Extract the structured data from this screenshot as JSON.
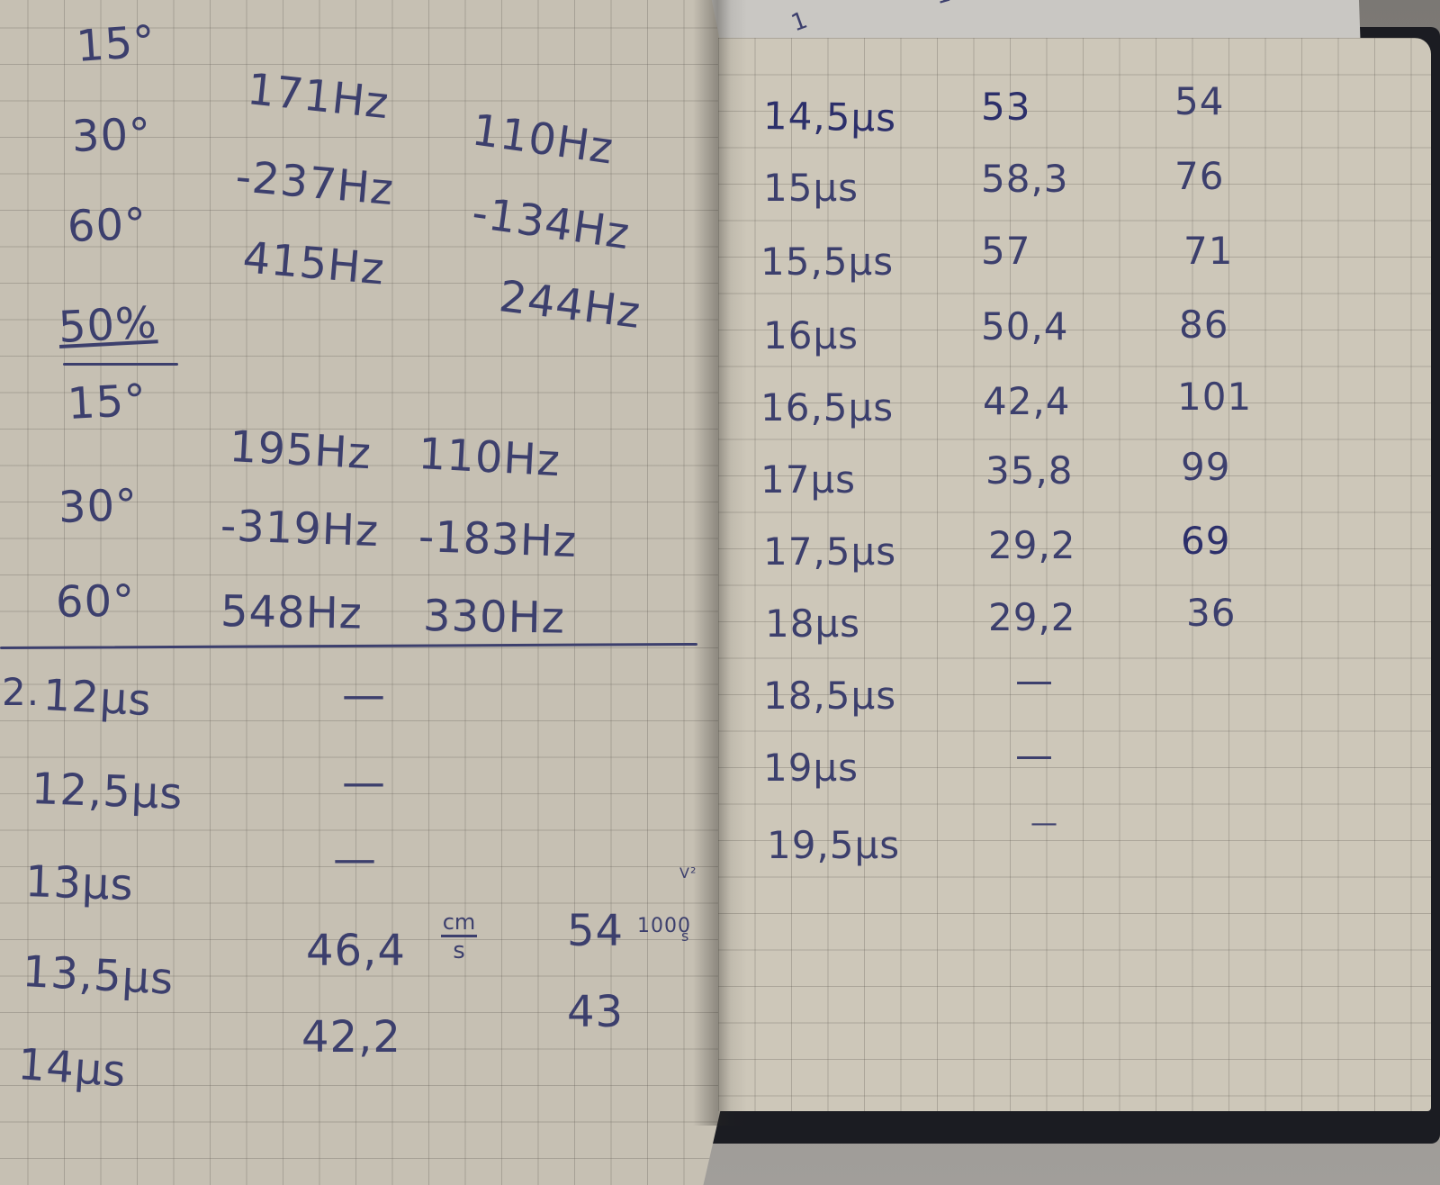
{
  "header_fragments": [
    "1 ",
    "1 "
  ],
  "left_page": {
    "section_a": [
      {
        "angle": "15°",
        "f1": "171Hz",
        "f2": "110Hz"
      },
      {
        "angle": "30°",
        "f1": "-237Hz",
        "f2": "-134Hz"
      },
      {
        "angle": "60°",
        "f1": "415Hz",
        "f2": "244Hz"
      }
    ],
    "heading": "50%",
    "section_b": [
      {
        "angle": "15°",
        "f1": "195Hz",
        "f2": "110Hz"
      },
      {
        "angle": "30°",
        "f1": "-319Hz",
        "f2": "-183Hz"
      },
      {
        "angle": "60°",
        "f1": "548Hz",
        "f2": "330Hz"
      }
    ],
    "marker": "2.",
    "timings": [
      {
        "t": "12μs",
        "v1": "—",
        "v2": ""
      },
      {
        "t": "12,5μs",
        "v1": "—",
        "v2": ""
      },
      {
        "t": "13μs",
        "v1": "—",
        "v2": ""
      },
      {
        "t": "13,5μs",
        "v1": "46,4",
        "v2": "54"
      },
      {
        "t": "14μs",
        "v1": "42,2",
        "v2": "43"
      }
    ],
    "unit_cm_s": {
      "num": "cm",
      "den": "s"
    },
    "unit_1000": "1000",
    "unit_v2": "V²",
    "unit_s": "s"
  },
  "right_page": {
    "rows": [
      {
        "t": "14,5μs",
        "v1": "53",
        "v2": "54"
      },
      {
        "t": "15μs",
        "v1": "58,3",
        "v2": "76"
      },
      {
        "t": "15,5μs",
        "v1": "57",
        "v2": "71"
      },
      {
        "t": "16μs",
        "v1": "50,4",
        "v2": "86"
      },
      {
        "t": "16,5μs",
        "v1": "42,4",
        "v2": "101"
      },
      {
        "t": "17μs",
        "v1": "35,8",
        "v2": "99"
      },
      {
        "t": "17,5μs",
        "v1": "29,2",
        "v2": "69"
      },
      {
        "t": "18μs",
        "v1": "29,2",
        "v2": "36"
      },
      {
        "t": "18,5μs",
        "v1": "—",
        "v2": ""
      },
      {
        "t": "19μs",
        "v1": "—",
        "v2": ""
      },
      {
        "t": "19,5μs",
        "v1": "—",
        "v2": ""
      }
    ]
  },
  "colors": {
    "ink": "#3c3f6d",
    "paper": "#cdc7b9",
    "grid": "#5f5a52",
    "cover": "#1b1c22"
  }
}
